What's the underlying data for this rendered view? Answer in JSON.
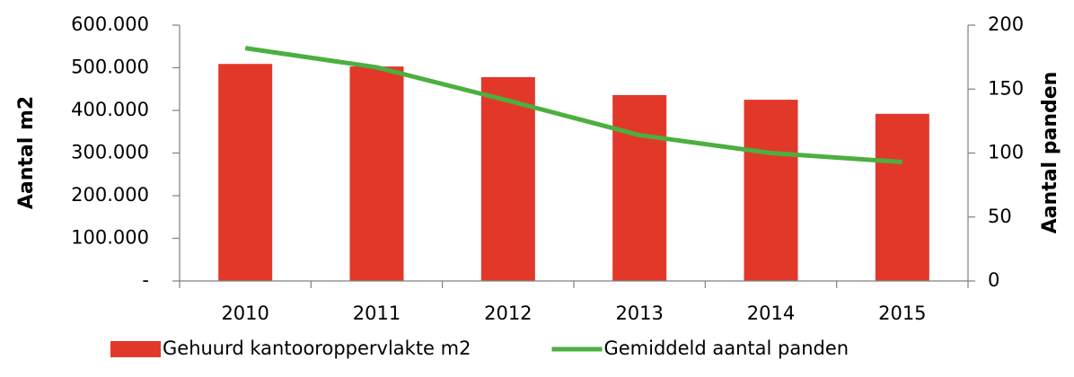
{
  "chart_data": {
    "type": "bar_line",
    "categories": [
      "2010",
      "2011",
      "2012",
      "2013",
      "2014",
      "2015"
    ],
    "series": [
      {
        "name": "Gehuurd kantooroppervlakte m2",
        "type": "bar",
        "color": "#e2382a",
        "values": [
          509000,
          503000,
          478000,
          436000,
          425000,
          392000
        ]
      },
      {
        "name": "Gemiddeld aantal panden",
        "type": "line",
        "axis": "y2",
        "color": "#4caf3f",
        "values": [
          182,
          167,
          141,
          114,
          100,
          93
        ]
      }
    ],
    "ylabel": "Aantal m2",
    "y2label": "Aantal panden",
    "ylim": [
      0,
      600000
    ],
    "yticks": [
      {
        "value": 0,
        "label": "-"
      },
      {
        "value": 100000,
        "label": "100.000"
      },
      {
        "value": 200000,
        "label": "200.000"
      },
      {
        "value": 300000,
        "label": "300.000"
      },
      {
        "value": 400000,
        "label": "400.000"
      },
      {
        "value": 500000,
        "label": "500.000"
      },
      {
        "value": 600000,
        "label": "600.000"
      }
    ],
    "y2lim": [
      0,
      200
    ],
    "y2ticks": [
      0,
      50,
      100,
      150,
      200
    ],
    "legend": "bottom"
  }
}
